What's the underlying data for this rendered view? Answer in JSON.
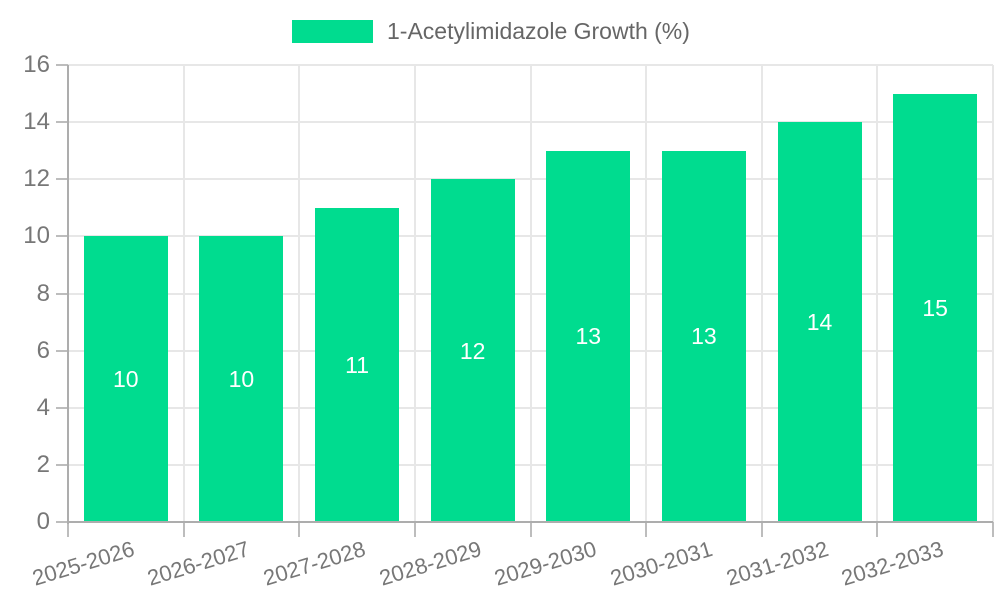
{
  "legend": {
    "items": [
      {
        "label": "1-Acetylimidazole Growth (%)",
        "swatch_color": "#00DC8F"
      }
    ],
    "position": "top-center"
  },
  "chart_data": {
    "type": "bar",
    "title": "",
    "xlabel": "",
    "ylabel": "",
    "categories": [
      "2025-2026",
      "2026-2027",
      "2027-2028",
      "2028-2029",
      "2029-2030",
      "2030-2031",
      "2031-2032",
      "2032-2033"
    ],
    "series": [
      {
        "name": "1-Acetylimidazole Growth (%)",
        "values": [
          10,
          10,
          11,
          12,
          13,
          13,
          14,
          15
        ]
      }
    ],
    "value_labels": [
      "10",
      "10",
      "11",
      "12",
      "13",
      "13",
      "14",
      "15"
    ],
    "ylim": [
      0,
      16
    ],
    "yticks": [
      0,
      2,
      4,
      6,
      8,
      10,
      12,
      14,
      16
    ],
    "grid": true,
    "legend_position": "top-center"
  },
  "colors": {
    "bar": "#00DC8F",
    "grid": "#E7E7E7",
    "axis": "#ADADAD",
    "tick": "#BDBDBD",
    "axis_text": "#777777",
    "legend_text": "#666666",
    "value_text": "#FFFFFF",
    "background": "#FFFFFF"
  }
}
